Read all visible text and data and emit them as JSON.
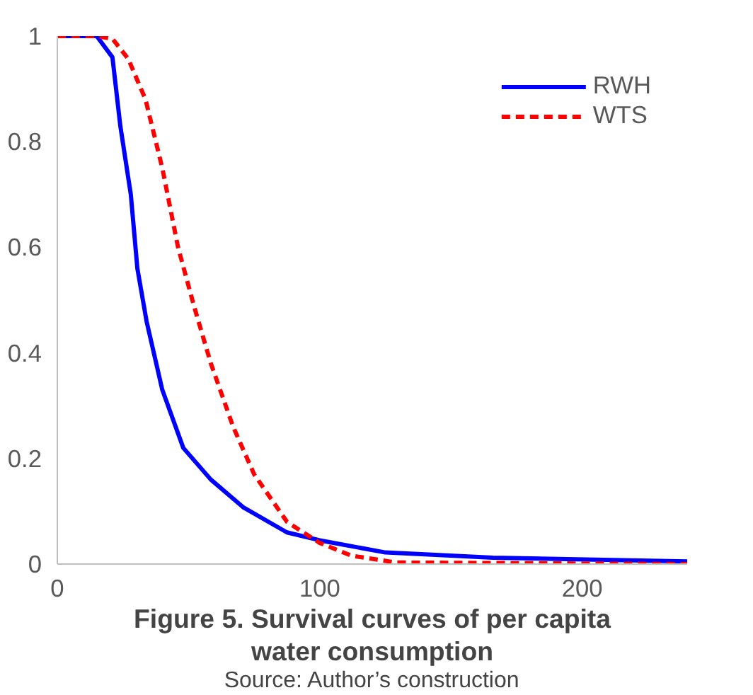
{
  "chart_data": {
    "type": "line",
    "title": "Figure 5. Survival curves of per capita water consumption",
    "annotations": [
      "Source: Author’s construction"
    ],
    "xlim": [
      0,
      240
    ],
    "ylim": [
      0,
      1
    ],
    "xticks": [
      0,
      100,
      200
    ],
    "yticks": [
      0,
      0.2,
      0.4,
      0.6,
      0.8,
      1
    ],
    "grid": false,
    "legend": "top right",
    "marker": "none",
    "series": [
      {
        "name": "RWH",
        "color": "#0000ff",
        "line_style": "solid",
        "x": [
          0,
          15,
          21,
          24,
          28,
          30.5,
          34,
          40,
          48,
          58.5,
          71,
          87.5,
          100,
          125,
          166,
          240
        ],
        "values": [
          1,
          1,
          0.96,
          0.83,
          0.7,
          0.56,
          0.46,
          0.33,
          0.22,
          0.16,
          0.107,
          0.06,
          0.045,
          0.022,
          0.012,
          0.005
        ]
      },
      {
        "name": "WTS",
        "color": "#ff0000",
        "line_style": "dashed",
        "x": [
          0,
          15,
          21,
          27,
          33.6,
          40,
          46,
          52,
          58.5,
          67,
          75,
          87.5,
          100,
          112,
          129,
          240
        ],
        "values": [
          1,
          1,
          0.995,
          0.957,
          0.88,
          0.75,
          0.6,
          0.49,
          0.38,
          0.26,
          0.17,
          0.08,
          0.04,
          0.016,
          0.003,
          0
        ]
      }
    ]
  }
}
